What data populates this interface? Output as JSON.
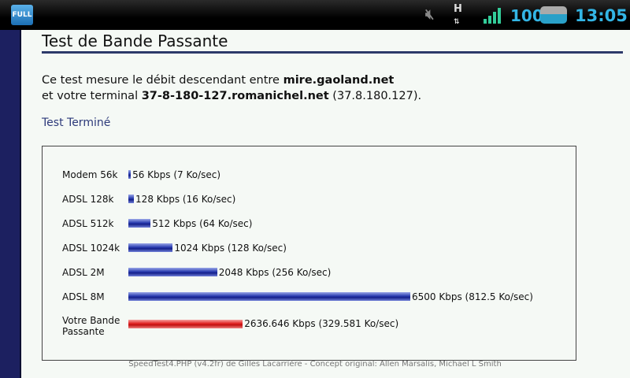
{
  "statusbar": {
    "app_icon": "FULL",
    "battery": "100",
    "time": "13:05",
    "icons": [
      "mute-icon",
      "hspa-data-icon",
      "signal-roaming-icon",
      "battery-icon"
    ]
  },
  "page": {
    "title": "Test de Bande Passante",
    "intro_line1_pre": "Ce test mesure le débit descendant entre ",
    "server": "mire.gaoland.net",
    "intro_line2_pre": "et votre terminal ",
    "host": "37-8-180-127.romanichel.net",
    "ip": " (37.8.180.127).",
    "status": "Test Terminé",
    "footer": "SpeedTest4.PHP (v4.2fr) de Gilles Lacarrière - Concept original: Allen Marsalis, Michael L Smith"
  },
  "chart_data": {
    "type": "bar",
    "orientation": "horizontal",
    "unit": "Kbps",
    "max": 6500,
    "rows": [
      {
        "label": "Modem 56k",
        "value": 56,
        "text": "56 Kbps (7 Ko/sec)",
        "color": "#2a3cb0"
      },
      {
        "label": "ADSL 128k",
        "value": 128,
        "text": "128 Kbps (16 Ko/sec)",
        "color": "#2a3cb0"
      },
      {
        "label": "ADSL 512k",
        "value": 512,
        "text": "512 Kbps (64 Ko/sec)",
        "color": "#2a3cb0"
      },
      {
        "label": "ADSL 1024k",
        "value": 1024,
        "text": "1024 Kbps (128 Ko/sec)",
        "color": "#2a3cb0"
      },
      {
        "label": "ADSL 2M",
        "value": 2048,
        "text": "2048 Kbps (256 Ko/sec)",
        "color": "#2a3cb0"
      },
      {
        "label": "ADSL 8M",
        "value": 6500,
        "text": "6500 Kbps (812.5 Ko/sec)",
        "color": "#2a3cb0"
      },
      {
        "label": "Votre Bande Passante",
        "value": 2636.646,
        "text": "2636.646 Kbps (329.581 Ko/sec)",
        "color": "#e02020"
      }
    ]
  }
}
